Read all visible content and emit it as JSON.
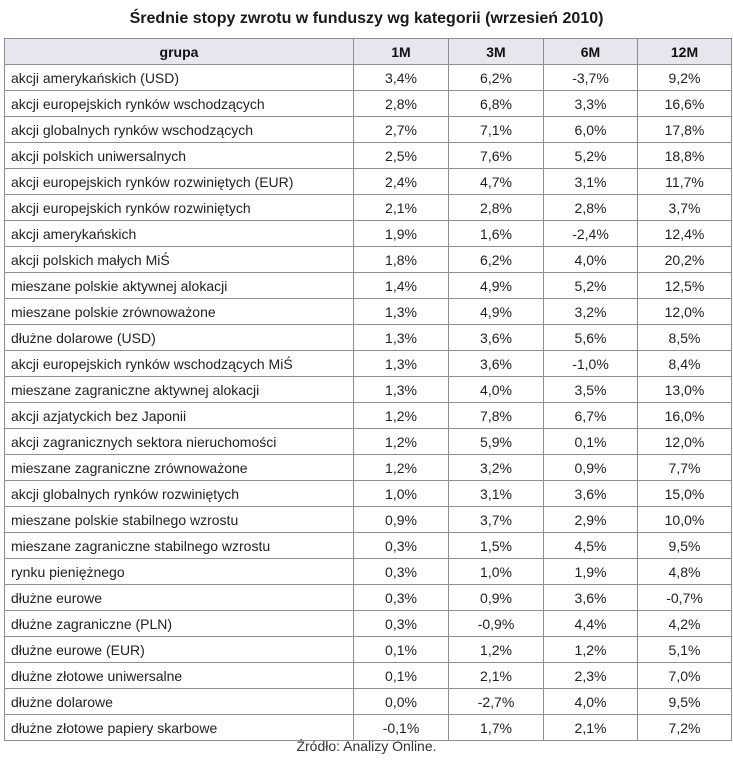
{
  "title": "Średnie stopy zwrotu w funduszy wg kategorii (wrzesień 2010)",
  "table": {
    "headers": [
      "grupa",
      "1M",
      "3M",
      "6M",
      "12M"
    ],
    "rows": [
      [
        "akcji amerykańskich (USD)",
        "3,4%",
        "6,2%",
        "-3,7%",
        "9,2%"
      ],
      [
        "akcji europejskich rynków wschodzących",
        "2,8%",
        "6,8%",
        "3,3%",
        "16,6%"
      ],
      [
        "akcji globalnych rynków wschodzących",
        "2,7%",
        "7,1%",
        "6,0%",
        "17,8%"
      ],
      [
        "akcji polskich uniwersalnych",
        "2,5%",
        "7,6%",
        "5,2%",
        "18,8%"
      ],
      [
        "akcji europejskich rynków rozwiniętych (EUR)",
        "2,4%",
        "4,7%",
        "3,1%",
        "11,7%"
      ],
      [
        "akcji europejskich rynków rozwiniętych",
        "2,1%",
        "2,8%",
        "2,8%",
        "3,7%"
      ],
      [
        "akcji amerykańskich",
        "1,9%",
        "1,6%",
        "-2,4%",
        "12,4%"
      ],
      [
        "akcji polskich małych MiŚ",
        "1,8%",
        "6,2%",
        "4,0%",
        "20,2%"
      ],
      [
        "mieszane polskie aktywnej alokacji",
        "1,4%",
        "4,9%",
        "5,2%",
        "12,5%"
      ],
      [
        "mieszane polskie zrównoważone",
        "1,3%",
        "4,9%",
        "3,2%",
        "12,0%"
      ],
      [
        "dłużne dolarowe (USD)",
        "1,3%",
        "3,6%",
        "5,6%",
        "8,5%"
      ],
      [
        "akcji europejskich rynków wschodzących MiŚ",
        "1,3%",
        "3,6%",
        "-1,0%",
        "8,4%"
      ],
      [
        "mieszane zagraniczne aktywnej alokacji",
        "1,3%",
        "4,0%",
        "3,5%",
        "13,0%"
      ],
      [
        "akcji azjatyckich bez Japonii",
        "1,2%",
        "7,8%",
        "6,7%",
        "16,0%"
      ],
      [
        "akcji zagranicznych sektora nieruchomości",
        "1,2%",
        "5,9%",
        "0,1%",
        "12,0%"
      ],
      [
        "mieszane zagraniczne zrównoważone",
        "1,2%",
        "3,2%",
        "0,9%",
        "7,7%"
      ],
      [
        "akcji globalnych rynków rozwiniętych",
        "1,0%",
        "3,1%",
        "3,6%",
        "15,0%"
      ],
      [
        "mieszane polskie stabilnego wzrostu",
        "0,9%",
        "3,7%",
        "2,9%",
        "10,0%"
      ],
      [
        "mieszane zagraniczne stabilnego wzrostu",
        "0,3%",
        "1,5%",
        "4,5%",
        "9,5%"
      ],
      [
        "rynku pieniężnego",
        "0,3%",
        "1,0%",
        "1,9%",
        "4,8%"
      ],
      [
        "dłużne eurowe",
        "0,3%",
        "0,9%",
        "3,6%",
        "-0,7%"
      ],
      [
        "dłużne zagraniczne (PLN)",
        "0,3%",
        "-0,9%",
        "4,4%",
        "4,2%"
      ],
      [
        "dłużne eurowe (EUR)",
        "0,1%",
        "1,2%",
        "1,2%",
        "5,1%"
      ],
      [
        "dłużne złotowe uniwersalne",
        "0,1%",
        "2,1%",
        "2,3%",
        "7,0%"
      ],
      [
        "dłużne dolarowe",
        "0,0%",
        "-2,7%",
        "4,0%",
        "9,5%"
      ],
      [
        "dłużne złotowe papiery skarbowe",
        "-0,1%",
        "1,7%",
        "2,1%",
        "7,2%"
      ]
    ]
  },
  "source": "Źródło: Analizy Online."
}
